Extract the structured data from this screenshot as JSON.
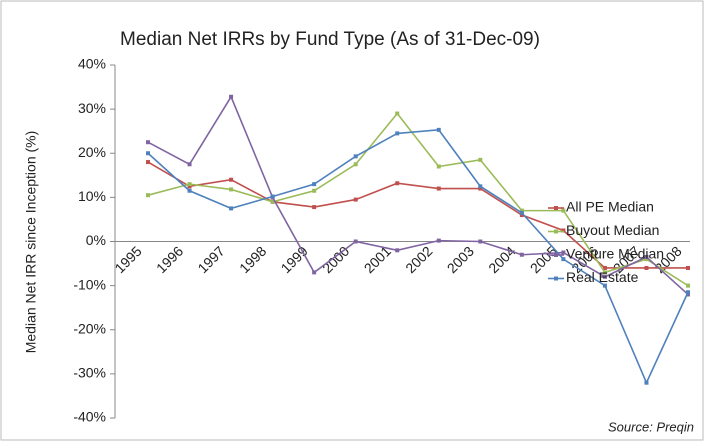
{
  "chart_data": {
    "type": "line",
    "title": "Median Net IRRs by Fund Type (As of 31-Dec-09)",
    "y_label": "Median Net IRR since Inception (%)",
    "source": "Source: Preqin",
    "categories": [
      "1995",
      "1996",
      "1997",
      "1998",
      "1999",
      "2000",
      "2001",
      "2002",
      "2003",
      "2004",
      "2005",
      "2006",
      "2007",
      "2008"
    ],
    "series": [
      {
        "name": "All PE Median",
        "color": "#c0504d",
        "values": [
          18,
          12.5,
          14,
          9,
          7.8,
          9.5,
          13.2,
          12,
          12,
          6,
          2.5,
          -6,
          -6,
          -6
        ]
      },
      {
        "name": "Buyout Median",
        "color": "#9bbb59",
        "values": [
          10.5,
          13,
          11.8,
          9,
          11.5,
          17.5,
          29,
          17,
          18.5,
          7,
          7,
          -7,
          -4,
          -10
        ]
      },
      {
        "name": "Venture Median",
        "color": "#8064a2",
        "values": [
          22.5,
          17.5,
          32.8,
          10,
          -7,
          0,
          -2,
          0.2,
          0,
          -3,
          -2.5,
          -8,
          -3.5,
          -12
        ]
      },
      {
        "name": "Real Estate",
        "color": "#4f81bd",
        "values": [
          20,
          11.5,
          7.5,
          10.2,
          13,
          19.3,
          24.5,
          25.3,
          12.5,
          6.5,
          -4,
          -10,
          -32,
          -11.5
        ]
      }
    ],
    "ylim": [
      -40,
      40
    ],
    "yticks": [
      {
        "value": -40,
        "label": "-40%"
      },
      {
        "value": -30,
        "label": "-30%"
      },
      {
        "value": -20,
        "label": "-20%"
      },
      {
        "value": -10,
        "label": "-10%"
      },
      {
        "value": 0,
        "label": "0%"
      },
      {
        "value": 10,
        "label": "10%"
      },
      {
        "value": 20,
        "label": "20%"
      },
      {
        "value": 30,
        "label": "30%"
      },
      {
        "value": 40,
        "label": "40%"
      }
    ],
    "legend": "right"
  }
}
